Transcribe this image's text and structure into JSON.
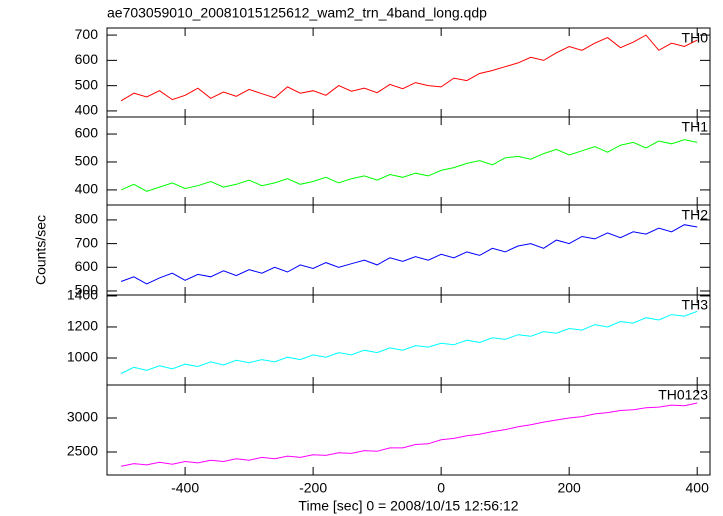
{
  "chart_data": [
    {
      "type": "line",
      "title": "ae703059010_20081015125612_wam2_trn_4band_long.qdp",
      "label": "TH0",
      "color": "#ff0000",
      "x": [
        -500,
        -480,
        -460,
        -440,
        -420,
        -400,
        -380,
        -360,
        -340,
        -320,
        -300,
        -280,
        -260,
        -240,
        -220,
        -200,
        -180,
        -160,
        -140,
        -120,
        -100,
        -80,
        -60,
        -40,
        -20,
        0,
        20,
        40,
        60,
        80,
        100,
        120,
        140,
        160,
        180,
        200,
        220,
        240,
        260,
        280,
        300,
        320,
        340,
        360,
        380,
        400
      ],
      "values": [
        440,
        470,
        455,
        480,
        445,
        462,
        490,
        450,
        475,
        458,
        485,
        468,
        452,
        495,
        470,
        480,
        462,
        500,
        478,
        490,
        472,
        505,
        488,
        512,
        500,
        495,
        530,
        520,
        548,
        560,
        575,
        590,
        612,
        600,
        630,
        655,
        640,
        668,
        690,
        650,
        672,
        700,
        640,
        668,
        655,
        680
      ],
      "xlim": [
        -522,
        420
      ],
      "ylim": [
        376,
        728
      ],
      "yticks": [
        400,
        500,
        600,
        700
      ]
    },
    {
      "type": "line",
      "label": "TH1",
      "color": "#00ff00",
      "x": [
        -500,
        -480,
        -460,
        -440,
        -420,
        -400,
        -380,
        -360,
        -340,
        -320,
        -300,
        -280,
        -260,
        -240,
        -220,
        -200,
        -180,
        -160,
        -140,
        -120,
        -100,
        -80,
        -60,
        -40,
        -20,
        0,
        20,
        40,
        60,
        80,
        100,
        120,
        140,
        160,
        180,
        200,
        220,
        240,
        260,
        280,
        300,
        320,
        340,
        360,
        380,
        400
      ],
      "values": [
        400,
        420,
        395,
        410,
        425,
        405,
        415,
        430,
        410,
        420,
        435,
        415,
        425,
        440,
        420,
        430,
        445,
        425,
        440,
        450,
        435,
        455,
        445,
        460,
        450,
        470,
        480,
        495,
        505,
        490,
        515,
        520,
        510,
        530,
        545,
        525,
        540,
        555,
        535,
        560,
        570,
        550,
        575,
        565,
        580,
        570
      ],
      "xlim": [
        -522,
        420
      ],
      "ylim": [
        346,
        661
      ],
      "yticks": [
        400,
        500,
        600
      ]
    },
    {
      "type": "line",
      "label": "TH2",
      "color": "#0000ff",
      "ylabel": "Counts/sec",
      "x": [
        -500,
        -480,
        -460,
        -440,
        -420,
        -400,
        -380,
        -360,
        -340,
        -320,
        -300,
        -280,
        -260,
        -240,
        -220,
        -200,
        -180,
        -160,
        -140,
        -120,
        -100,
        -80,
        -60,
        -40,
        -20,
        0,
        20,
        40,
        60,
        80,
        100,
        120,
        140,
        160,
        180,
        200,
        220,
        240,
        260,
        280,
        300,
        320,
        340,
        360,
        380,
        400
      ],
      "values": [
        540,
        560,
        530,
        555,
        575,
        545,
        570,
        560,
        585,
        565,
        590,
        575,
        600,
        580,
        610,
        595,
        620,
        600,
        615,
        630,
        610,
        640,
        625,
        645,
        630,
        655,
        640,
        665,
        650,
        680,
        665,
        690,
        700,
        680,
        715,
        700,
        730,
        720,
        745,
        725,
        750,
        740,
        765,
        750,
        780,
        770
      ],
      "xlim": [
        -522,
        420
      ],
      "ylim": [
        483,
        863
      ],
      "yticks": [
        500,
        600,
        700,
        800
      ]
    },
    {
      "type": "line",
      "label": "TH3",
      "color": "#00ffff",
      "x": [
        -500,
        -480,
        -460,
        -440,
        -420,
        -400,
        -380,
        -360,
        -340,
        -320,
        -300,
        -280,
        -260,
        -240,
        -220,
        -200,
        -180,
        -160,
        -140,
        -120,
        -100,
        -80,
        -60,
        -40,
        -20,
        0,
        20,
        40,
        60,
        80,
        100,
        120,
        140,
        160,
        180,
        200,
        220,
        240,
        260,
        280,
        300,
        320,
        340,
        360,
        380,
        400
      ],
      "values": [
        900,
        940,
        920,
        950,
        930,
        960,
        945,
        975,
        955,
        985,
        970,
        990,
        975,
        1005,
        990,
        1020,
        1005,
        1035,
        1020,
        1050,
        1035,
        1065,
        1050,
        1080,
        1070,
        1095,
        1085,
        1115,
        1100,
        1130,
        1120,
        1150,
        1140,
        1170,
        1160,
        1190,
        1180,
        1215,
        1200,
        1235,
        1225,
        1260,
        1245,
        1280,
        1270,
        1300
      ],
      "xlim": [
        -522,
        420
      ],
      "ylim": [
        826,
        1406
      ],
      "yticks": [
        1000,
        1200,
        1400
      ]
    },
    {
      "type": "line",
      "label": "TH0123",
      "color": "#ff00ff",
      "xlabel": "Time [sec] 0 = 2008/10/15 12:56:12",
      "x": [
        -500,
        -480,
        -460,
        -440,
        -420,
        -400,
        -380,
        -360,
        -340,
        -320,
        -300,
        -280,
        -260,
        -240,
        -220,
        -200,
        -180,
        -160,
        -140,
        -120,
        -100,
        -80,
        -60,
        -40,
        -20,
        0,
        20,
        40,
        60,
        80,
        100,
        120,
        140,
        160,
        180,
        200,
        220,
        240,
        260,
        280,
        300,
        320,
        340,
        360,
        380,
        400
      ],
      "values": [
        2290,
        2330,
        2310,
        2350,
        2320,
        2360,
        2340,
        2380,
        2360,
        2400,
        2380,
        2420,
        2400,
        2440,
        2420,
        2460,
        2450,
        2490,
        2480,
        2520,
        2510,
        2560,
        2560,
        2610,
        2620,
        2680,
        2700,
        2740,
        2760,
        2800,
        2830,
        2870,
        2900,
        2940,
        2970,
        3000,
        3020,
        3060,
        3080,
        3110,
        3120,
        3150,
        3160,
        3190,
        3180,
        3220
      ],
      "xlim": [
        -522,
        420
      ],
      "ylim": [
        2162,
        3485
      ],
      "yticks": [
        2500,
        3000
      ],
      "xticks": [
        -400,
        -200,
        0,
        200,
        400
      ]
    }
  ]
}
